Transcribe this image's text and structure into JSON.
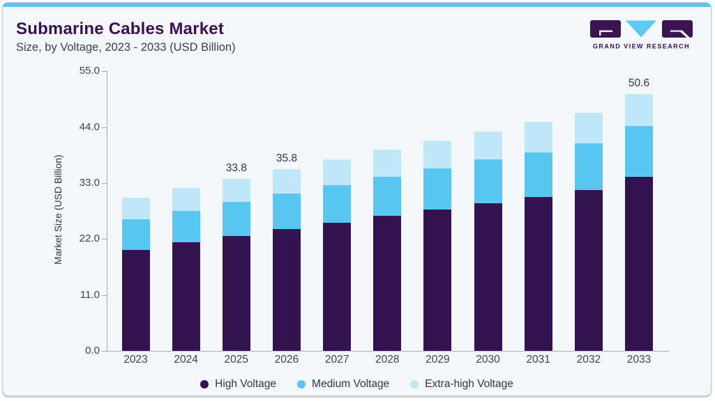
{
  "header": {
    "title": "Submarine Cables Market",
    "subtitle": "Size, by Voltage, 2023 - 2033 (USD Billion)"
  },
  "logo": {
    "text": "GRAND VIEW RESEARCH"
  },
  "chart_data": {
    "type": "bar",
    "stacked": true,
    "title": "Submarine Cables Market Size, by Voltage, 2023 - 2033 (USD Billion)",
    "categories": [
      "2023",
      "2024",
      "2025",
      "2026",
      "2027",
      "2028",
      "2029",
      "2030",
      "2031",
      "2032",
      "2033"
    ],
    "series": [
      {
        "name": "High Voltage",
        "color": "#341450",
        "values": [
          19.9,
          21.3,
          22.6,
          23.9,
          25.2,
          26.5,
          27.8,
          29.0,
          30.2,
          31.6,
          34.3
        ]
      },
      {
        "name": "Medium Voltage",
        "color": "#58c8f3",
        "values": [
          6.0,
          6.2,
          6.7,
          7.1,
          7.4,
          7.7,
          8.1,
          8.6,
          8.8,
          9.2,
          10.0
        ]
      },
      {
        "name": "Extra-high Voltage",
        "color": "#bfe7f9",
        "values": [
          4.2,
          4.5,
          4.5,
          4.8,
          5.0,
          5.4,
          5.5,
          5.6,
          6.0,
          6.0,
          6.3
        ]
      }
    ],
    "totals": [
      30.1,
      32.0,
      33.8,
      35.8,
      37.6,
      39.6,
      41.4,
      43.2,
      45.0,
      46.8,
      50.6
    ],
    "bar_labels": {
      "2025": "33.8",
      "2026": "35.8",
      "2033": "50.6"
    },
    "ylabel": "Market Size (USD Billion)",
    "y_ticks": [
      "0.0",
      "11.0",
      "22.0",
      "33.0",
      "44.0",
      "55.0"
    ],
    "ylim": [
      0,
      55
    ],
    "grid": false,
    "legend_position": "bottom"
  },
  "colors": {
    "accent_top_bar": "#5bc6ee",
    "card_background": "#f3f7fa",
    "title": "#3a1053",
    "subtitle_text": "#3b3f4a",
    "axis": "#a8aeb8",
    "tick_text": "#3d434d",
    "high_voltage": "#341450",
    "medium_voltage": "#58c8f3",
    "extra_high_voltage": "#bfe7f9"
  }
}
